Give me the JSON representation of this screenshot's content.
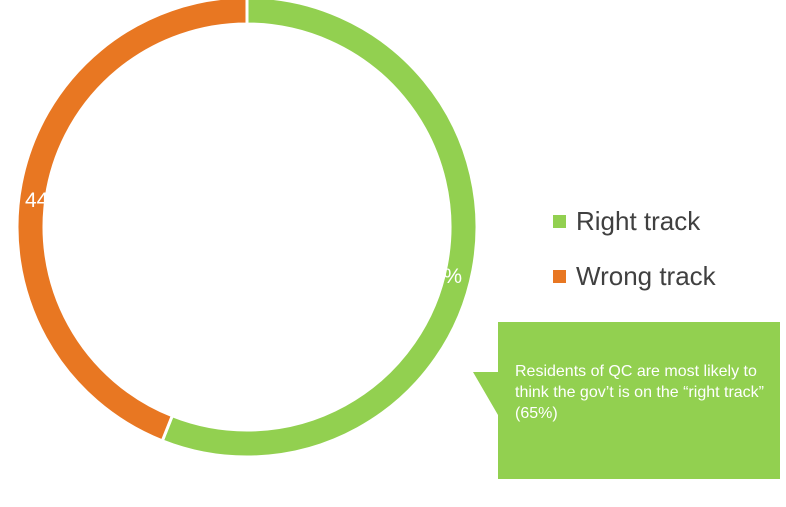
{
  "chart_data": {
    "type": "pie",
    "variant": "donut",
    "title": "",
    "categories": [
      "Right track",
      "Wrong track"
    ],
    "values": [
      56,
      44
    ],
    "data_labels": [
      "56%",
      "44%"
    ],
    "colors": [
      "#92d050",
      "#e87722"
    ],
    "legend_position": "right"
  },
  "callout": {
    "text": "Residents of QC are most likely to think the gov’t is on the “right track” (65%)",
    "color": "#92d050"
  }
}
